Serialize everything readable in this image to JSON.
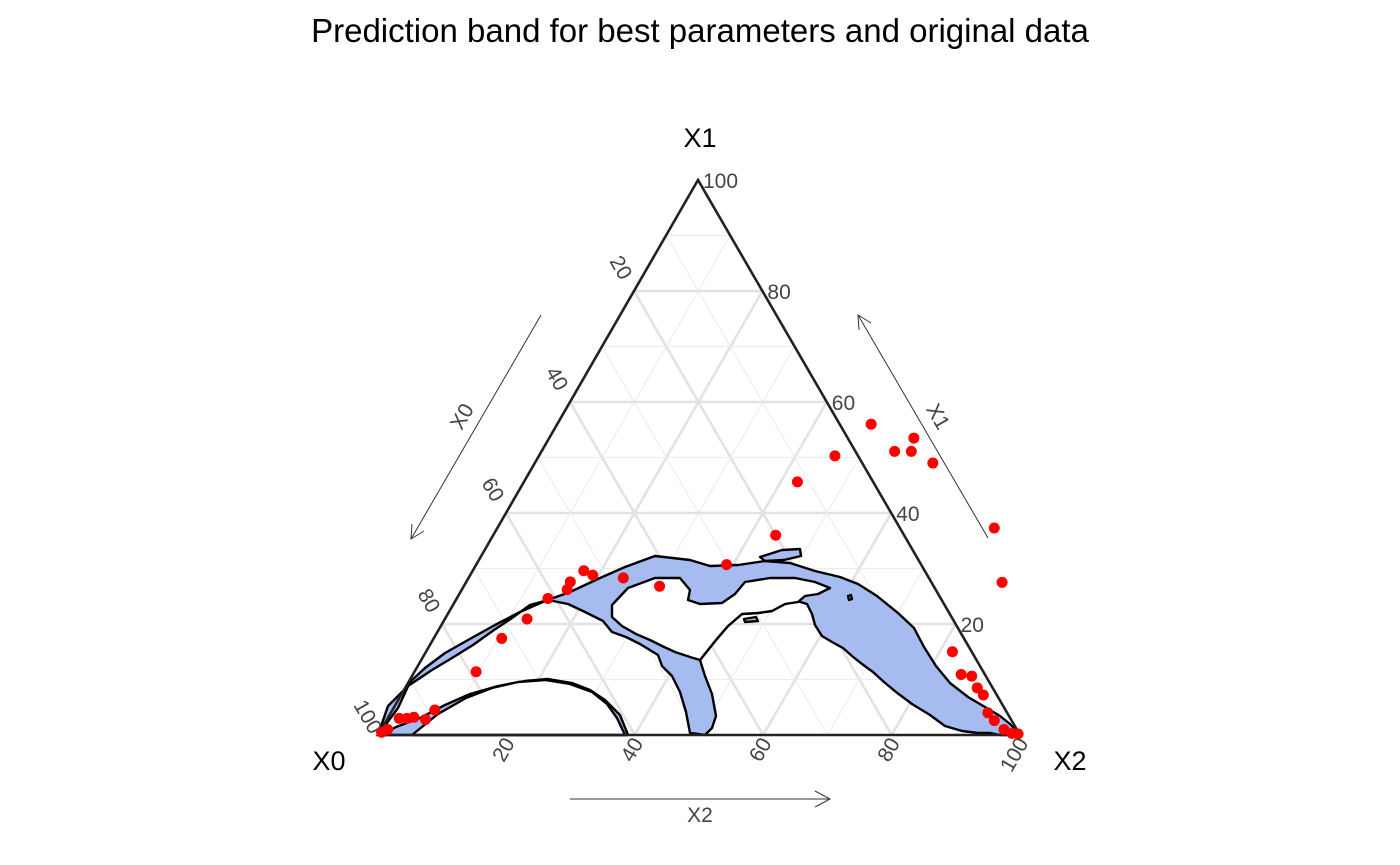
{
  "chart_data": {
    "type": "ternary-scatter",
    "title": "Prediction band for best parameters and original data",
    "axes": {
      "vertex_labels": {
        "left": "X0",
        "top": "X1",
        "right": "X2"
      },
      "arrow_labels": {
        "x0": "X0",
        "x1": "X1",
        "x2": "X2"
      },
      "ticks": [
        "20",
        "40",
        "60",
        "80",
        "100"
      ],
      "range": [
        0,
        100
      ],
      "major_step": 20,
      "minor_step": 10,
      "grid": true
    },
    "series": [
      {
        "type": "scatter",
        "color": "#ff0000",
        "points_x1_x2": [
          [
            0.5,
            0.3
          ],
          [
            1.0,
            1.0
          ],
          [
            3.0,
            1.8
          ],
          [
            3.0,
            3.0
          ],
          [
            3.2,
            4.0
          ],
          [
            2.8,
            6.0
          ],
          [
            4.5,
            6.6
          ],
          [
            11.4,
            9.6
          ],
          [
            17.4,
            10.6
          ],
          [
            20.9,
            12.8
          ],
          [
            24.6,
            14.2
          ],
          [
            26.2,
            16.4
          ],
          [
            27.6,
            16.2
          ],
          [
            29.6,
            17.3
          ],
          [
            28.8,
            19.1
          ],
          [
            28.3,
            24.1
          ],
          [
            26.8,
            30.5
          ],
          [
            30.7,
            39.0
          ],
          [
            36.0,
            44.0
          ],
          [
            45.6,
            42.6
          ],
          [
            50.3,
            46.1
          ],
          [
            51.1,
            55.0
          ],
          [
            56.0,
            48.9
          ],
          [
            51.1,
            57.6
          ],
          [
            53.5,
            56.8
          ],
          [
            49.0,
            62.0
          ],
          [
            37.3,
            77.4
          ],
          [
            27.5,
            83.5
          ],
          [
            15.0,
            82.0
          ],
          [
            10.9,
            85.4
          ],
          [
            10.6,
            87.2
          ],
          [
            8.5,
            89.1
          ],
          [
            7.2,
            90.7
          ],
          [
            4.0,
            93.0
          ],
          [
            2.6,
            94.7
          ],
          [
            1.0,
            97.0
          ],
          [
            0.3,
            98.6
          ],
          [
            0.2,
            99.6
          ]
        ]
      }
    ],
    "prediction_band": {
      "fill": "#a6bcf0",
      "outline": "#000000"
    }
  }
}
